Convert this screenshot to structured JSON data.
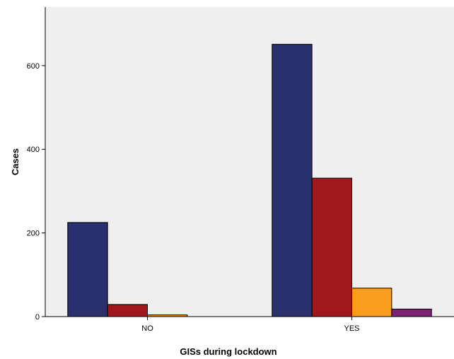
{
  "chart_data": {
    "type": "bar",
    "title": "",
    "xlabel": "GISs during lockdown",
    "ylabel": "Cases",
    "categories": [
      "NO",
      "YES"
    ],
    "ylim": [
      0,
      740
    ],
    "yticks": [
      0,
      200,
      400,
      600
    ],
    "grid": false,
    "legend": "none",
    "plot_background": "#efefef",
    "series": [
      {
        "color": "#2a2f6d",
        "values": [
          225,
          651
        ]
      },
      {
        "color": "#a0161b",
        "values": [
          29,
          331
        ]
      },
      {
        "color": "#f99d1e",
        "values": [
          4,
          68
        ]
      },
      {
        "color": "#7b2276",
        "values": [
          0,
          18
        ]
      }
    ]
  }
}
